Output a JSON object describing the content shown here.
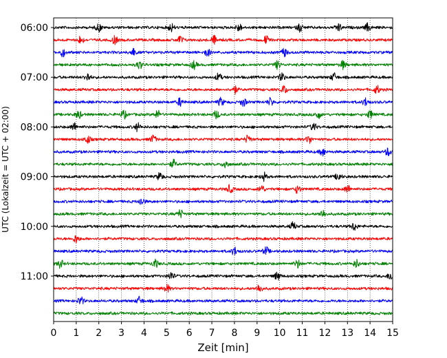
{
  "chart_data": {
    "type": "line",
    "subtype": "helicorder-seismogram",
    "xlabel": "Zeit  [min]",
    "ylabel": "UTC (Lokalzeit = UTC + 02:00)",
    "xlim": [
      0,
      15
    ],
    "x_ticks": [
      "0",
      "1",
      "2",
      "3",
      "4",
      "5",
      "6",
      "7",
      "8",
      "9",
      "10",
      "11",
      "12",
      "13",
      "14",
      "15"
    ],
    "x_grid": "dotted vertical gridlines at every minute",
    "y_ticks": [
      "06:00",
      "07:00",
      "08:00",
      "09:00",
      "10:00",
      "11:00"
    ],
    "trace_interval_minutes": 15,
    "trace_count": 24,
    "color_cycle": [
      "#000000",
      "#ff0000",
      "#0000ff",
      "#008000"
    ],
    "traces_start_utc": [
      "06:00",
      "06:15",
      "06:30",
      "06:45",
      "07:00",
      "07:15",
      "07:30",
      "07:45",
      "08:00",
      "08:15",
      "08:30",
      "08:45",
      "09:00",
      "09:15",
      "09:30",
      "09:45",
      "10:00",
      "10:15",
      "10:30",
      "10:45",
      "11:00",
      "11:15",
      "11:30",
      "11:45"
    ],
    "bursts_minutes": [
      [
        2.0,
        5.2,
        8.2,
        10.9,
        12.6,
        13.9
      ],
      [
        1.2,
        2.7,
        5.6,
        7.1,
        9.4
      ],
      [
        0.4,
        3.5,
        6.8,
        10.2
      ],
      [
        3.8,
        6.2,
        9.9,
        12.8
      ],
      [
        1.5,
        7.3,
        10.1,
        12.4
      ],
      [
        8.0,
        10.2,
        14.3
      ],
      [
        5.6,
        7.4,
        8.4,
        9.6,
        13.8
      ],
      [
        1.1,
        3.1,
        4.6,
        7.2,
        11.7,
        14.0
      ],
      [
        0.9,
        3.7,
        11.5
      ],
      [
        1.5,
        4.4,
        8.6,
        11.3
      ],
      [
        11.9,
        14.8
      ],
      [
        5.3,
        7.6
      ],
      [
        4.7,
        9.3,
        12.6
      ],
      [
        7.8,
        9.2,
        10.8,
        13.0
      ],
      [
        3.9
      ],
      [
        5.6,
        11.9
      ],
      [
        10.6,
        13.3
      ],
      [
        1.0
      ],
      [
        8.0,
        9.4
      ],
      [
        0.3,
        4.5,
        10.8,
        13.4
      ],
      [
        5.2,
        9.9,
        14.9
      ],
      [
        5.0,
        9.1
      ],
      [
        1.2,
        3.8
      ],
      []
    ]
  }
}
